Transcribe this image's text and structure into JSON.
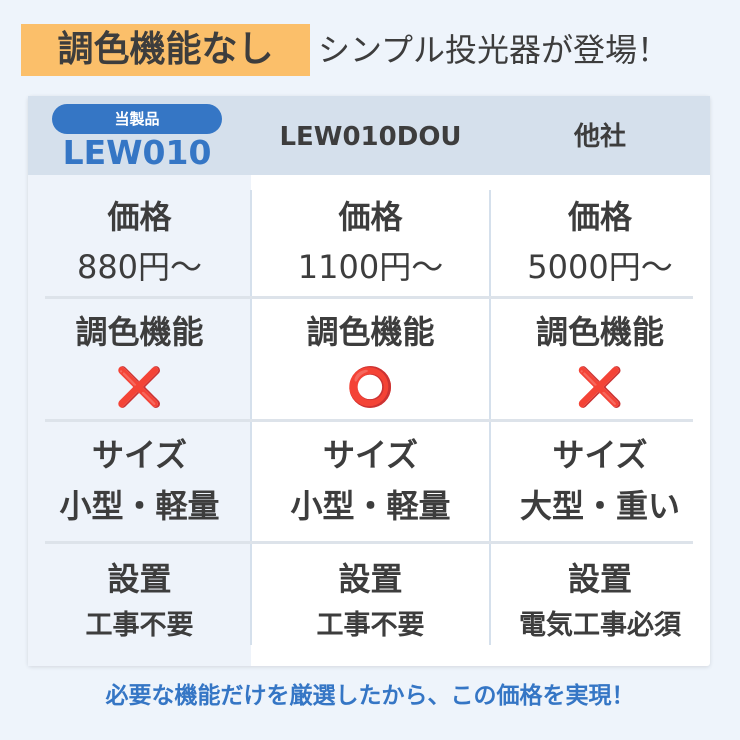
{
  "headline": {
    "highlight": "調色機能なし",
    "rest": "シンプル投光器が登場！"
  },
  "columns": [
    {
      "badge": "当製品",
      "name": "LEW010"
    },
    {
      "name": "LEW010DOU"
    },
    {
      "name": "他社"
    }
  ],
  "rows": [
    {
      "label": "価格",
      "values": [
        "880円〜",
        "1100円〜",
        "5000円〜"
      ]
    },
    {
      "label": "調色機能",
      "values": [
        "❌",
        "⭕",
        "❌"
      ]
    },
    {
      "label": "サイズ",
      "values": [
        "小型・軽量",
        "小型・軽量",
        "大型・重い"
      ]
    },
    {
      "label": "設置",
      "values": [
        "工事不要",
        "工事不要",
        "電気工事必須"
      ]
    }
  ],
  "footer": "必要な機能だけを厳選したから、この価格を実現！",
  "colors": {
    "accent": "#3576c5",
    "highlight": "#fbbf6a",
    "cross": "#e0362b"
  }
}
